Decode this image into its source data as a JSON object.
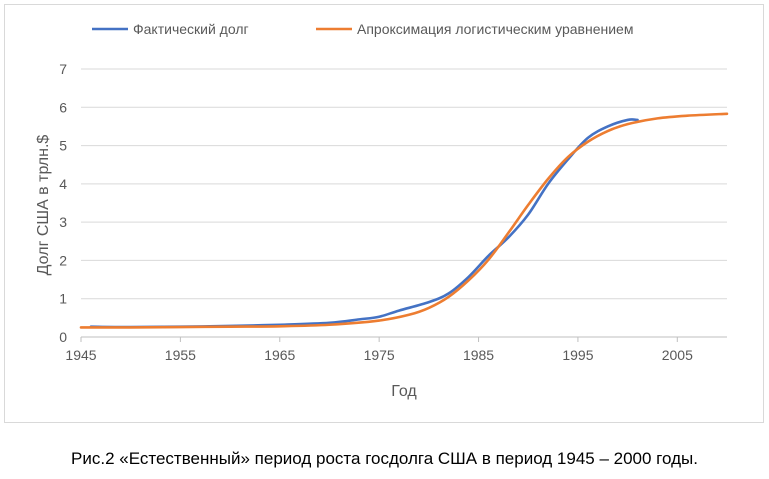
{
  "chart_data": {
    "type": "line",
    "title": "",
    "xlabel": "Год",
    "ylabel": "Долг США в трлн.$",
    "xlim": [
      1945,
      2010
    ],
    "ylim": [
      0,
      7
    ],
    "xticks": [
      "1945",
      "1955",
      "1965",
      "1975",
      "1985",
      "1995",
      "2005"
    ],
    "xtick_values": [
      1945,
      1955,
      1965,
      1975,
      1985,
      1995,
      2005
    ],
    "yticks": [
      "0",
      "1",
      "2",
      "3",
      "4",
      "5",
      "6",
      "7"
    ],
    "ytick_values": [
      0,
      1,
      2,
      3,
      4,
      5,
      6,
      7
    ],
    "grid": "horizontal",
    "legend_position": "top",
    "series": [
      {
        "name": "Фактический долг",
        "color": "#4472c4",
        "x": [
          1946,
          1950,
          1955,
          1960,
          1965,
          1970,
          1973,
          1975,
          1977,
          1980,
          1982,
          1984,
          1986,
          1988,
          1990,
          1992,
          1994,
          1996,
          1998,
          2000,
          2001
        ],
        "y": [
          0.27,
          0.26,
          0.27,
          0.29,
          0.32,
          0.37,
          0.46,
          0.53,
          0.69,
          0.91,
          1.14,
          1.57,
          2.12,
          2.6,
          3.2,
          4.0,
          4.64,
          5.2,
          5.5,
          5.67,
          5.67
        ]
      },
      {
        "name": "Апроксимация логистическим уравнением",
        "color": "#ed7d31",
        "x": [
          1945,
          1950,
          1955,
          1960,
          1965,
          1970,
          1975,
          1978,
          1980,
          1982,
          1984,
          1986,
          1988,
          1990,
          1992,
          1994,
          1996,
          1998,
          2000,
          2003,
          2006,
          2010
        ],
        "y": [
          0.25,
          0.25,
          0.26,
          0.27,
          0.28,
          0.32,
          0.43,
          0.58,
          0.76,
          1.05,
          1.48,
          2.02,
          2.72,
          3.45,
          4.13,
          4.7,
          5.1,
          5.38,
          5.56,
          5.71,
          5.78,
          5.83
        ]
      }
    ]
  },
  "caption": "Рис.2 «Естественный» период роста госдолга США в период 1945 – 2000 годы."
}
